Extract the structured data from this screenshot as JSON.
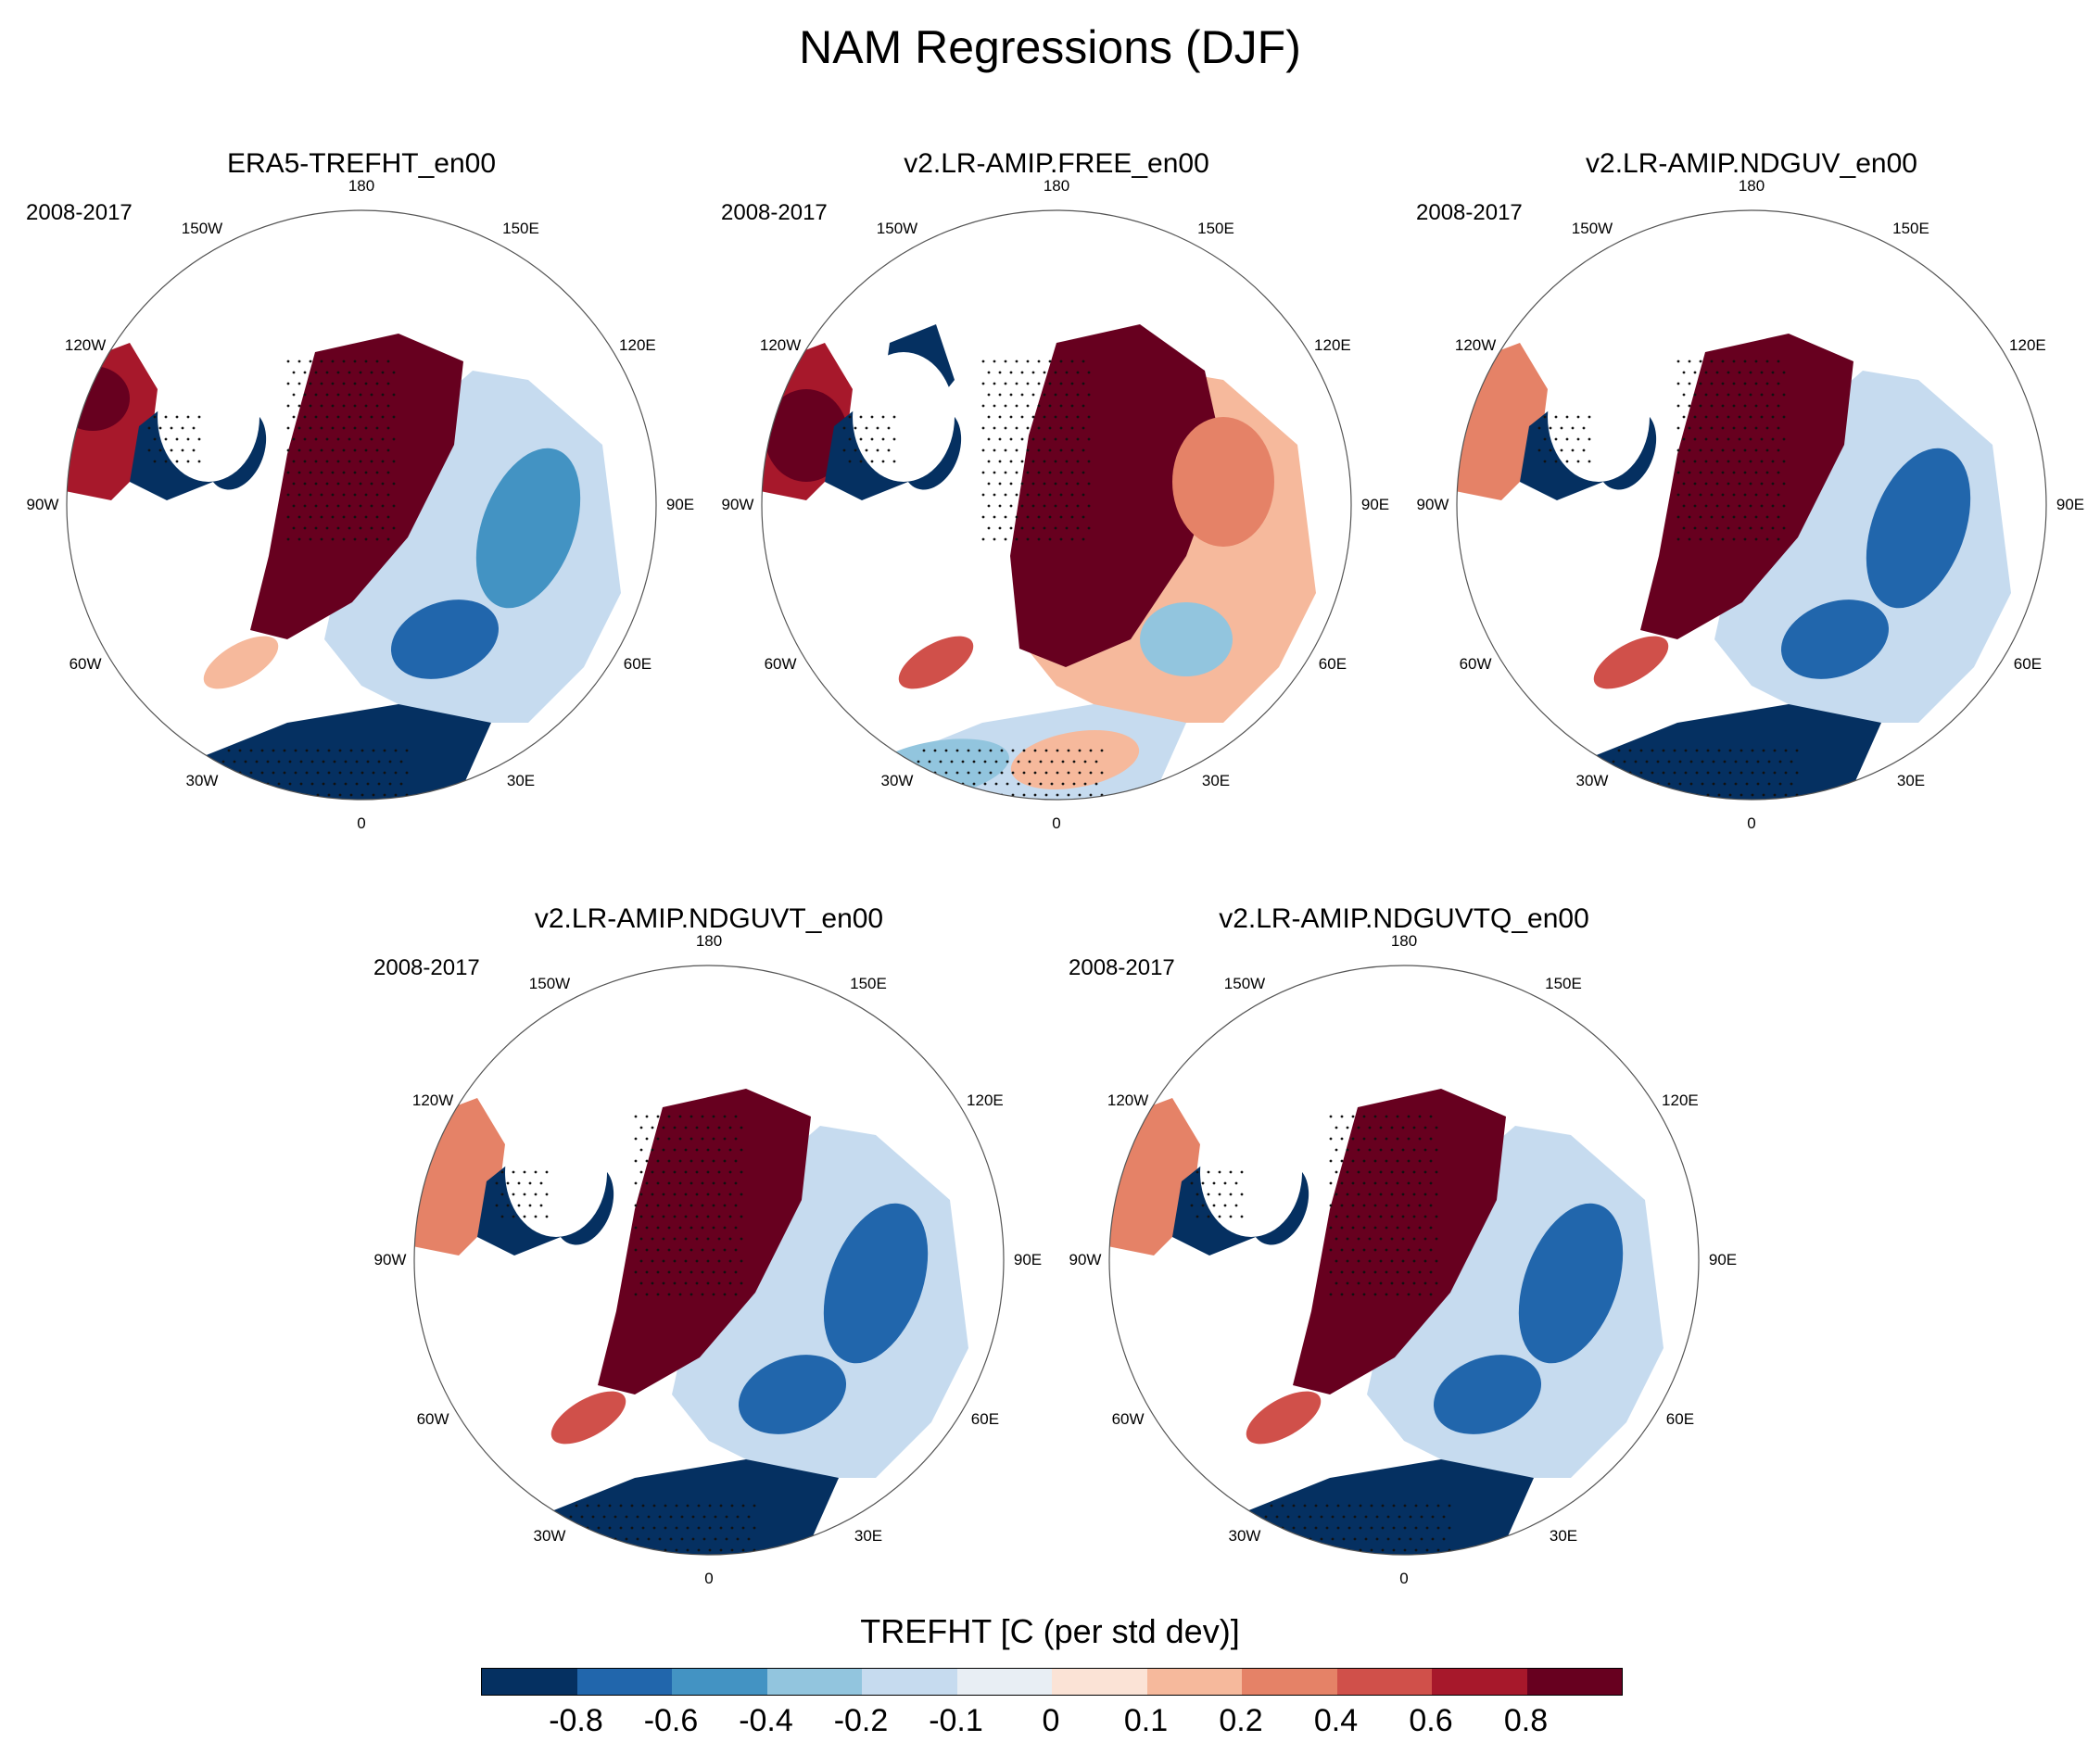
{
  "figure": {
    "title": "NAM Regressions (DJF)"
  },
  "panels": [
    {
      "title": "ERA5-TREFHT_en00",
      "period": "2008-2017",
      "variant": "era5"
    },
    {
      "title": "v2.LR-AMIP.FREE_en00",
      "period": "2008-2017",
      "variant": "free"
    },
    {
      "title": "v2.LR-AMIP.NDGUV_en00",
      "period": "2008-2017",
      "variant": "nduv"
    },
    {
      "title": "v2.LR-AMIP.NDGUVT_en00",
      "period": "2008-2017",
      "variant": "nduvt"
    },
    {
      "title": "v2.LR-AMIP.NDGUVTQ_en00",
      "period": "2008-2017",
      "variant": "nduvtq"
    }
  ],
  "longitude_labels": [
    "180",
    "150E",
    "120E",
    "90E",
    "60E",
    "30E",
    "0",
    "30W",
    "60W",
    "90W",
    "120W",
    "150W"
  ],
  "colorbar": {
    "title": "TREFHT [C (per std dev)]",
    "tick_labels": [
      "-0.8",
      "-0.6",
      "-0.4",
      "-0.2",
      "-0.1",
      "0",
      "0.1",
      "0.2",
      "0.4",
      "0.6",
      "0.8"
    ],
    "colors": [
      "#053061",
      "#2166ac",
      "#4393c3",
      "#92c5de",
      "#c6dbef",
      "#e8eef4",
      "#fbe3d6",
      "#f6b99c",
      "#e58267",
      "#d0504a",
      "#a7182b",
      "#67001f"
    ]
  },
  "map": {
    "projection": "north polar stereographic",
    "stippling": "significant regressions",
    "land_outline_color": "#888888",
    "circle_border_color": "#555555"
  }
}
